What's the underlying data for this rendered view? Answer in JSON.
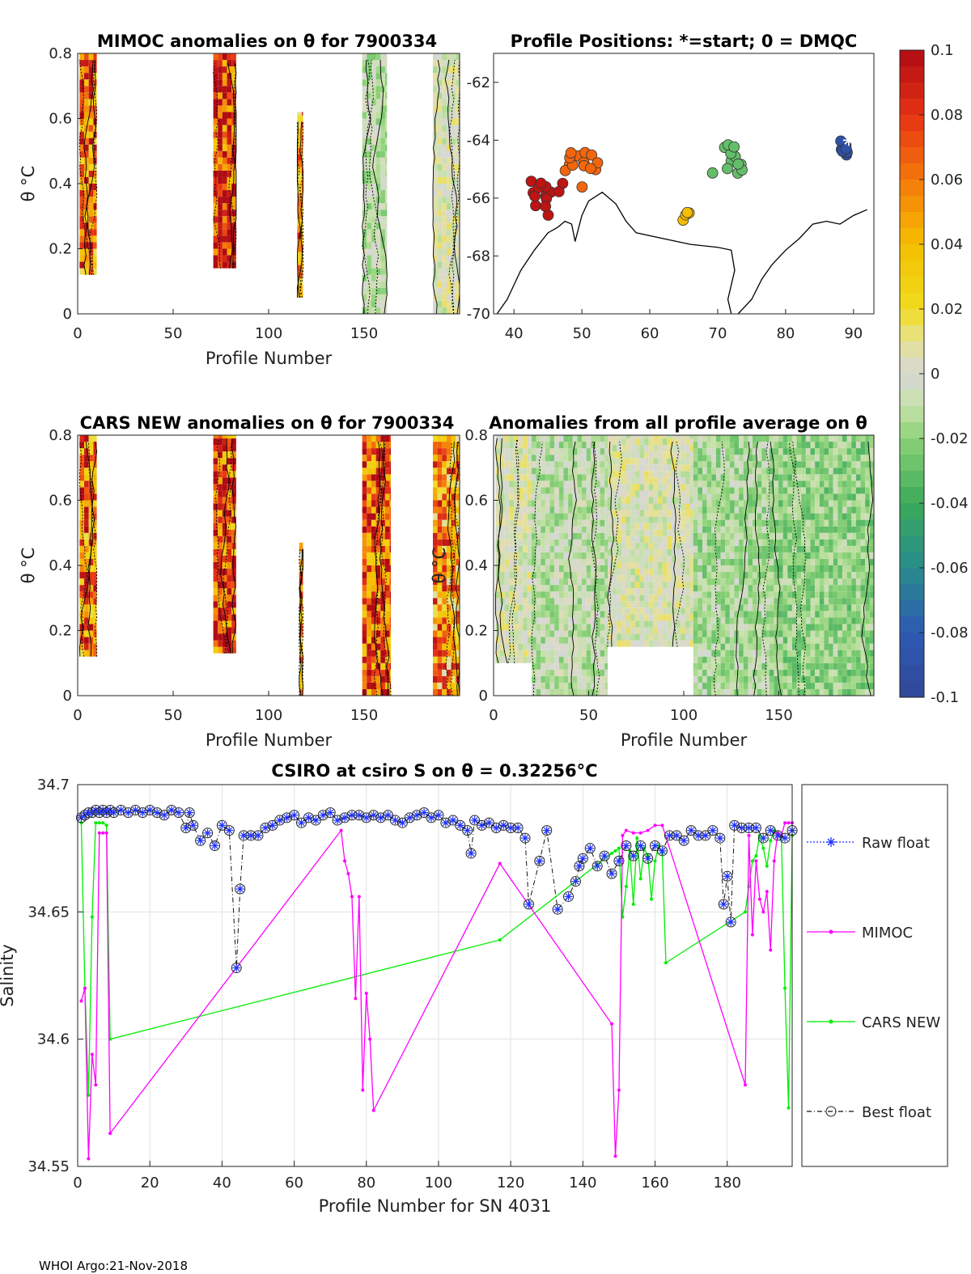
{
  "footer": "WHOI Argo:21-Nov-2018",
  "colors": {
    "raw": "#1f33ff",
    "mimoc": "#ff00ff",
    "cars": "#00ee00",
    "best": "#111111"
  },
  "chart_data": [
    {
      "id": "mimoc_heatmap",
      "type": "heatmap",
      "title": "MIMOC anomalies on θ  for 7900334",
      "xlabel": "Profile Number",
      "ylabel": "θ °C",
      "xlim": [
        0,
        200
      ],
      "ylim": [
        0,
        0.8
      ],
      "xticks": [
        0,
        50,
        100,
        150
      ],
      "yticks": [
        0,
        0.2,
        0.4,
        0.6,
        0.8
      ],
      "blocks": [
        {
          "x0": 1,
          "x1": 10,
          "y0": 0.12,
          "y1": 0.8,
          "mean_anomaly": 0.06
        },
        {
          "x0": 71,
          "x1": 83,
          "y0": 0.14,
          "y1": 0.8,
          "mean_anomaly": 0.08
        },
        {
          "x0": 115,
          "x1": 118,
          "y0": 0.05,
          "y1": 0.62,
          "mean_anomaly": 0.05
        },
        {
          "x0": 149,
          "x1": 162,
          "y0": 0.0,
          "y1": 0.8,
          "mean_anomaly": -0.01
        },
        {
          "x0": 186,
          "x1": 200,
          "y0": 0.0,
          "y1": 0.8,
          "mean_anomaly": 0.0
        }
      ]
    },
    {
      "id": "profile_positions",
      "type": "scatter",
      "title": "Profile Positions: *=start; 0 = DMQC",
      "xlim": [
        37,
        93
      ],
      "ylim": [
        -70,
        -61
      ],
      "xticks": [
        40,
        50,
        60,
        70,
        80,
        90
      ],
      "yticks": [
        -62,
        -64,
        -66,
        -68,
        -70
      ],
      "clusters": [
        {
          "lon": 88.5,
          "lat": -64.3,
          "n": 10,
          "anomaly": -0.09
        },
        {
          "lon": 71.3,
          "lat": -64.7,
          "n": 12,
          "anomaly": -0.03
        },
        {
          "lon": 65.5,
          "lat": -66.5,
          "n": 4,
          "anomaly": 0.04
        },
        {
          "lon": 50.0,
          "lat": -65.0,
          "n": 14,
          "anomaly": 0.065
        },
        {
          "lon": 45.0,
          "lat": -66.0,
          "n": 14,
          "anomaly": 0.095
        }
      ],
      "start": {
        "lon": 89.3,
        "lat": -64.0
      }
    },
    {
      "id": "cars_heatmap",
      "type": "heatmap",
      "title": "CARS NEW anomalies on θ for 7900334",
      "xlabel": "Profile Number",
      "ylabel": "θ °C",
      "xlim": [
        0,
        200
      ],
      "ylim": [
        0,
        0.8
      ],
      "xticks": [
        0,
        50,
        100,
        150
      ],
      "yticks": [
        0,
        0.2,
        0.4,
        0.6,
        0.8
      ],
      "blocks": [
        {
          "x0": 1,
          "x1": 10,
          "y0": 0.12,
          "y1": 0.8,
          "mean_anomaly": 0.06
        },
        {
          "x0": 71,
          "x1": 83,
          "y0": 0.13,
          "y1": 0.8,
          "mean_anomaly": 0.07
        },
        {
          "x0": 116,
          "x1": 118,
          "y0": 0.0,
          "y1": 0.47,
          "mean_anomaly": 0.04
        },
        {
          "x0": 149,
          "x1": 164,
          "y0": 0.0,
          "y1": 0.8,
          "mean_anomaly": 0.07
        },
        {
          "x0": 186,
          "x1": 200,
          "y0": 0.0,
          "y1": 0.8,
          "mean_anomaly": 0.05
        }
      ]
    },
    {
      "id": "all_average_heatmap",
      "type": "heatmap",
      "title": "Anomalies from all profile average on θ",
      "xlabel": "Profile Number",
      "ylabel": "θ °C",
      "xlim": [
        0,
        200
      ],
      "ylim": [
        0,
        0.8
      ],
      "xticks": [
        0,
        50,
        100,
        150
      ],
      "yticks": [
        0,
        0.2,
        0.4,
        0.6,
        0.8
      ],
      "blocks": [
        {
          "x0": 1,
          "x1": 20,
          "y0": 0.1,
          "y1": 0.8,
          "mean_anomaly": 0.0
        },
        {
          "x0": 20,
          "x1": 60,
          "y0": 0.0,
          "y1": 0.8,
          "mean_anomaly": -0.01
        },
        {
          "x0": 60,
          "x1": 105,
          "y0": 0.15,
          "y1": 0.8,
          "mean_anomaly": 0.0
        },
        {
          "x0": 105,
          "x1": 145,
          "y0": 0.0,
          "y1": 0.8,
          "mean_anomaly": -0.015
        },
        {
          "x0": 145,
          "x1": 200,
          "y0": 0.0,
          "y1": 0.8,
          "mean_anomaly": -0.02
        }
      ]
    },
    {
      "id": "salinity_line",
      "type": "line",
      "title": "CSIRO at csiro S on θ = 0.32256°C",
      "xlabel": "Profile Number for SN 4031",
      "ylabel": "Salinity",
      "xlim": [
        0,
        198
      ],
      "ylim": [
        34.55,
        34.7
      ],
      "xticks": [
        0,
        20,
        40,
        60,
        80,
        100,
        120,
        140,
        160,
        180
      ],
      "yticks": [
        34.55,
        34.6,
        34.65,
        34.7
      ],
      "legend": [
        "Raw float",
        "MIMOC",
        "CARS NEW",
        "Best float"
      ],
      "series": [
        {
          "name": "Best float",
          "x": [
            1,
            2,
            3,
            4,
            5,
            6,
            7,
            8,
            9,
            10,
            12,
            14,
            16,
            18,
            20,
            22,
            24,
            26,
            28,
            30,
            31,
            32,
            34,
            36,
            38,
            40,
            42,
            44,
            45,
            46,
            48,
            50,
            52,
            54,
            56,
            58,
            60,
            62,
            64,
            66,
            68,
            70,
            72,
            74,
            76,
            78,
            80,
            82,
            84,
            86,
            88,
            90,
            92,
            94,
            96,
            98,
            100,
            102,
            104,
            106,
            108,
            109,
            110,
            112,
            114,
            116,
            118,
            120,
            122,
            124,
            125,
            128,
            130,
            133,
            136,
            138,
            139,
            140,
            142,
            144,
            146,
            148,
            150,
            152,
            154,
            156,
            158,
            160,
            162,
            164,
            166,
            168,
            170,
            172,
            174,
            176,
            178,
            179,
            180,
            181,
            182,
            184,
            186,
            188,
            190,
            192,
            194,
            196,
            198
          ],
          "y": [
            34.687,
            34.688,
            34.689,
            34.689,
            34.69,
            34.689,
            34.69,
            34.689,
            34.69,
            34.689,
            34.69,
            34.689,
            34.69,
            34.689,
            34.69,
            34.689,
            34.688,
            34.69,
            34.689,
            34.683,
            34.689,
            34.684,
            34.678,
            34.681,
            34.676,
            34.684,
            34.682,
            34.628,
            34.659,
            34.68,
            34.68,
            34.68,
            34.683,
            34.684,
            34.686,
            34.687,
            34.688,
            34.685,
            34.687,
            34.686,
            34.688,
            34.689,
            34.686,
            34.687,
            34.688,
            34.688,
            34.687,
            34.688,
            34.687,
            34.688,
            34.686,
            34.685,
            34.687,
            34.688,
            34.689,
            34.687,
            34.688,
            34.685,
            34.686,
            34.684,
            34.682,
            34.673,
            34.686,
            34.684,
            34.685,
            34.683,
            34.684,
            34.683,
            34.683,
            34.679,
            34.653,
            34.67,
            34.682,
            34.651,
            34.656,
            34.662,
            34.668,
            34.671,
            34.675,
            34.668,
            34.672,
            34.665,
            34.67,
            34.676,
            34.672,
            34.676,
            34.671,
            34.676,
            34.674,
            34.68,
            34.68,
            34.678,
            34.682,
            34.68,
            34.68,
            34.682,
            34.679,
            34.653,
            34.664,
            34.646,
            34.684,
            34.683,
            34.683,
            34.683,
            34.679,
            34.682,
            34.68,
            34.679,
            34.682
          ]
        },
        {
          "name": "MIMOC",
          "x": [
            1,
            2,
            3,
            4,
            5,
            6,
            7,
            8,
            9,
            9,
            73,
            74,
            75,
            76,
            77,
            78,
            79,
            80,
            81,
            82,
            117,
            148,
            149,
            150,
            151,
            152,
            154,
            156,
            158,
            160,
            162,
            185,
            186,
            187,
            188,
            189,
            190,
            191,
            192,
            193,
            194,
            195,
            196,
            197,
            198
          ],
          "y": [
            34.615,
            34.62,
            34.553,
            34.594,
            34.582,
            34.681,
            34.681,
            34.681,
            34.563,
            34.563,
            34.682,
            34.67,
            34.665,
            34.656,
            34.616,
            34.656,
            34.58,
            34.618,
            34.6,
            34.572,
            34.669,
            34.606,
            34.554,
            34.58,
            34.68,
            34.682,
            34.681,
            34.681,
            34.682,
            34.684,
            34.684,
            34.582,
            34.68,
            34.641,
            34.67,
            34.655,
            34.65,
            34.658,
            34.635,
            34.67,
            34.681,
            34.68,
            34.685,
            34.685,
            34.685
          ]
        },
        {
          "name": "CARS NEW",
          "x": [
            1,
            2,
            3,
            4,
            5,
            6,
            7,
            8,
            9,
            117,
            148,
            149,
            150,
            151,
            152,
            153,
            154,
            155,
            156,
            157,
            158,
            159,
            160,
            161,
            162,
            163,
            185,
            186,
            187,
            188,
            189,
            190,
            191,
            192,
            193,
            194,
            195,
            196,
            197,
            198
          ],
          "y": [
            34.685,
            34.62,
            34.578,
            34.648,
            34.685,
            34.685,
            34.685,
            34.684,
            34.6,
            34.639,
            34.673,
            34.674,
            34.675,
            34.648,
            34.66,
            34.674,
            34.653,
            34.679,
            34.663,
            34.675,
            34.672,
            34.655,
            34.67,
            34.676,
            34.673,
            34.63,
            34.65,
            34.66,
            34.67,
            34.672,
            34.68,
            34.675,
            34.668,
            34.678,
            34.682,
            34.681,
            34.68,
            34.62,
            34.573,
            34.68
          ]
        }
      ]
    }
  ],
  "colorbar": {
    "ticks": [
      "0.1",
      "0.08",
      "0.06",
      "0.04",
      "0.02",
      "0",
      "-0.02",
      "-0.04",
      "-0.06",
      "-0.08",
      "-0.1"
    ],
    "vmin": -0.1,
    "vmax": 0.1
  }
}
